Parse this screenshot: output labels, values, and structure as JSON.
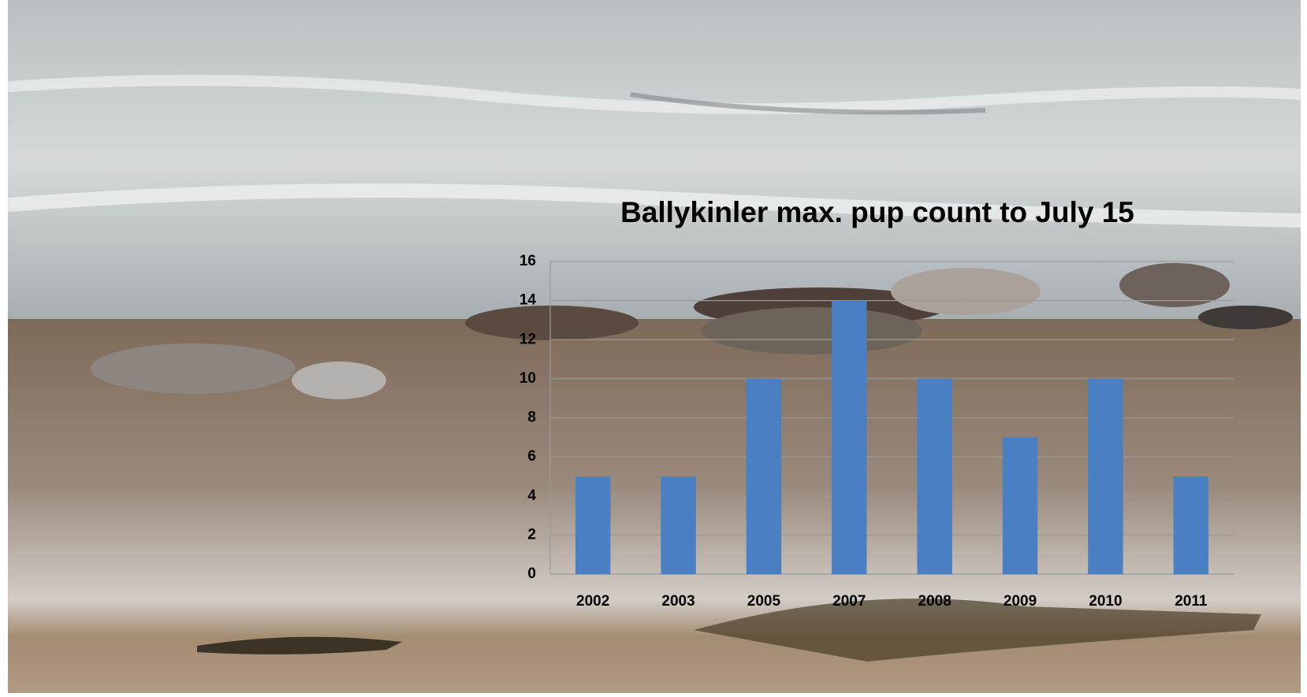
{
  "chart_data": {
    "type": "bar",
    "title": "Ballykinler max. pup count to July 15",
    "categories": [
      "2002",
      "2003",
      "2005",
      "2007",
      "2008",
      "2009",
      "2010",
      "2011"
    ],
    "values": [
      5,
      5,
      10,
      14,
      10,
      7,
      10,
      5
    ],
    "color": "#4a7fc4",
    "ylim": [
      0,
      16
    ],
    "yticks": [
      0,
      2,
      4,
      6,
      8,
      10,
      12,
      14,
      16
    ],
    "grid": true
  }
}
